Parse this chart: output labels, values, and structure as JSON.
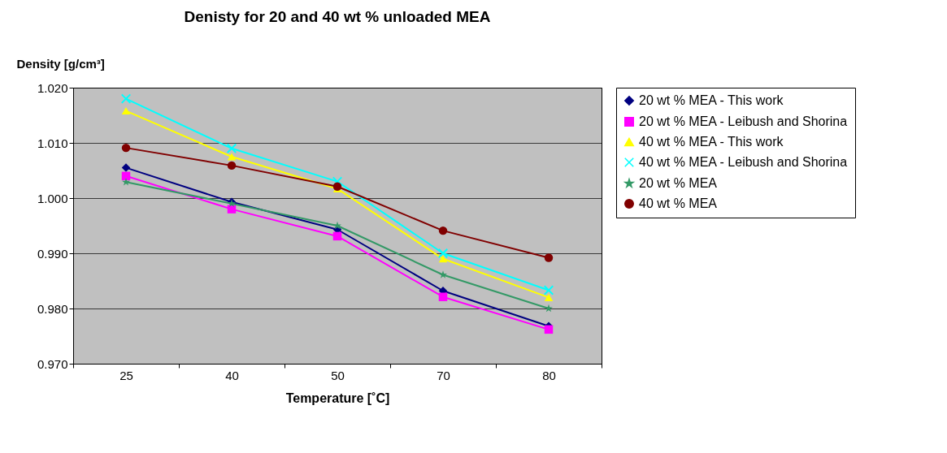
{
  "chart_data": {
    "type": "line",
    "title": "Denisty for 20 and 40 wt % unloaded MEA",
    "xlabel": "Temperature [˚C]",
    "ylabel": "Density [g/cm³]",
    "categories": [
      "25",
      "40",
      "50",
      "70",
      "80"
    ],
    "ylim": [
      0.97,
      1.02
    ],
    "yticks": [
      {
        "value": 0.97,
        "label": "0.970"
      },
      {
        "value": 0.98,
        "label": "0.980"
      },
      {
        "value": 0.99,
        "label": "0.990"
      },
      {
        "value": 1.0,
        "label": "1.000"
      },
      {
        "value": 1.01,
        "label": "1.010"
      },
      {
        "value": 1.02,
        "label": "1.020"
      }
    ],
    "grid": "y",
    "legend": "right",
    "line_style": "solid",
    "series": [
      {
        "name": "20 wt % MEA - This work",
        "color": "#000080",
        "marker": "diamond",
        "values": [
          1.0055,
          0.9993,
          0.9943,
          0.9832,
          0.9768
        ]
      },
      {
        "name": "20 wt % MEA - Leibush and Shorina",
        "color": "#ff00ff",
        "marker": "square",
        "values": [
          1.004,
          0.998,
          0.9931,
          0.9821,
          0.9762
        ]
      },
      {
        "name": "40 wt % MEA - This work",
        "color": "#ffff00",
        "marker": "triangle",
        "values": [
          1.0158,
          1.0075,
          1.0017,
          0.989,
          0.982
        ]
      },
      {
        "name": "40 wt % MEA - Leibush and Shorina",
        "color": "#00ffff",
        "marker": "cross",
        "values": [
          1.018,
          1.009,
          1.003,
          0.99,
          0.9833
        ]
      },
      {
        "name": "20 wt % MEA",
        "color": "#339966",
        "marker": "star",
        "values": [
          1.0029,
          0.999,
          0.995,
          0.9861,
          0.98
        ]
      },
      {
        "name": "40 wt % MEA",
        "color": "#800000",
        "marker": "circle",
        "values": [
          1.0091,
          1.0059,
          1.0021,
          0.9941,
          0.9892
        ]
      }
    ]
  }
}
